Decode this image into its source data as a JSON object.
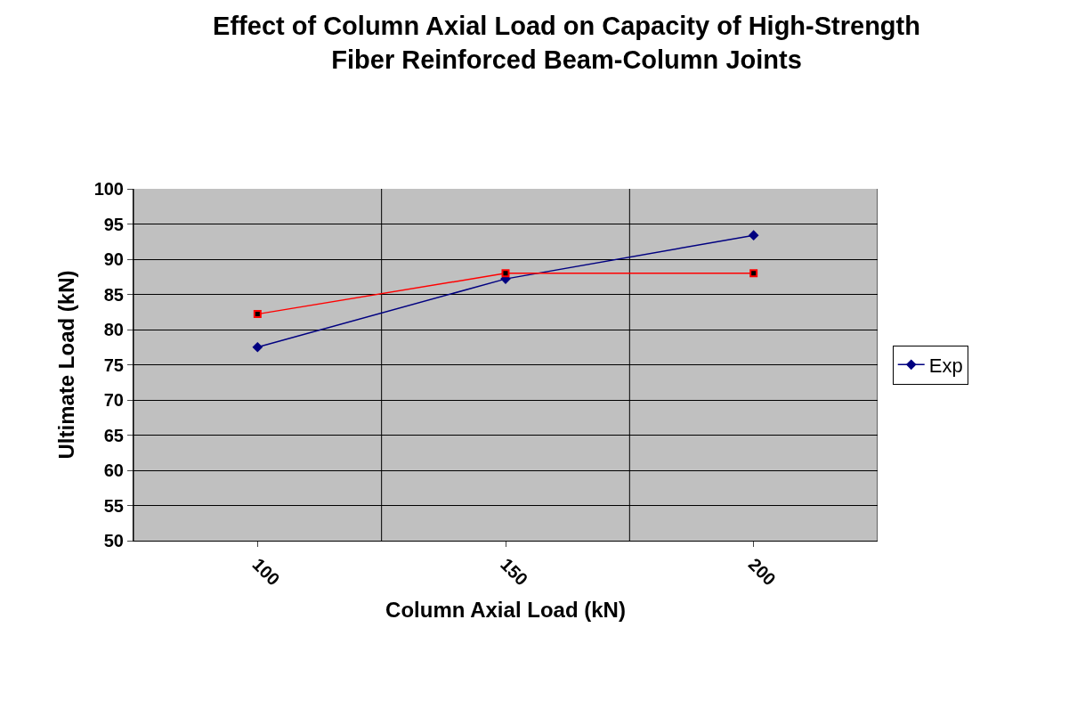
{
  "chart_data": {
    "type": "line",
    "title": "Effect of Column Axial Load on Capacity of High-Strength Fiber Reinforced Beam-Column Joints",
    "xlabel": "Column Axial Load (kN)",
    "ylabel": "Ultimate Load (kN)",
    "categories": [
      "100",
      "150",
      "200"
    ],
    "series": [
      {
        "name": "Exp",
        "color": "#000080",
        "marker": "diamond",
        "values": [
          77.5,
          87.2,
          93.4
        ]
      },
      {
        "color": "#ff0000",
        "marker": "square",
        "values": [
          82.2,
          88.0,
          88.0
        ]
      }
    ],
    "ylim": [
      50,
      100
    ],
    "yticks": [
      50,
      55,
      60,
      65,
      70,
      75,
      80,
      85,
      90,
      95,
      100
    ],
    "grid": true,
    "legend": "right",
    "line_style": "solid"
  }
}
